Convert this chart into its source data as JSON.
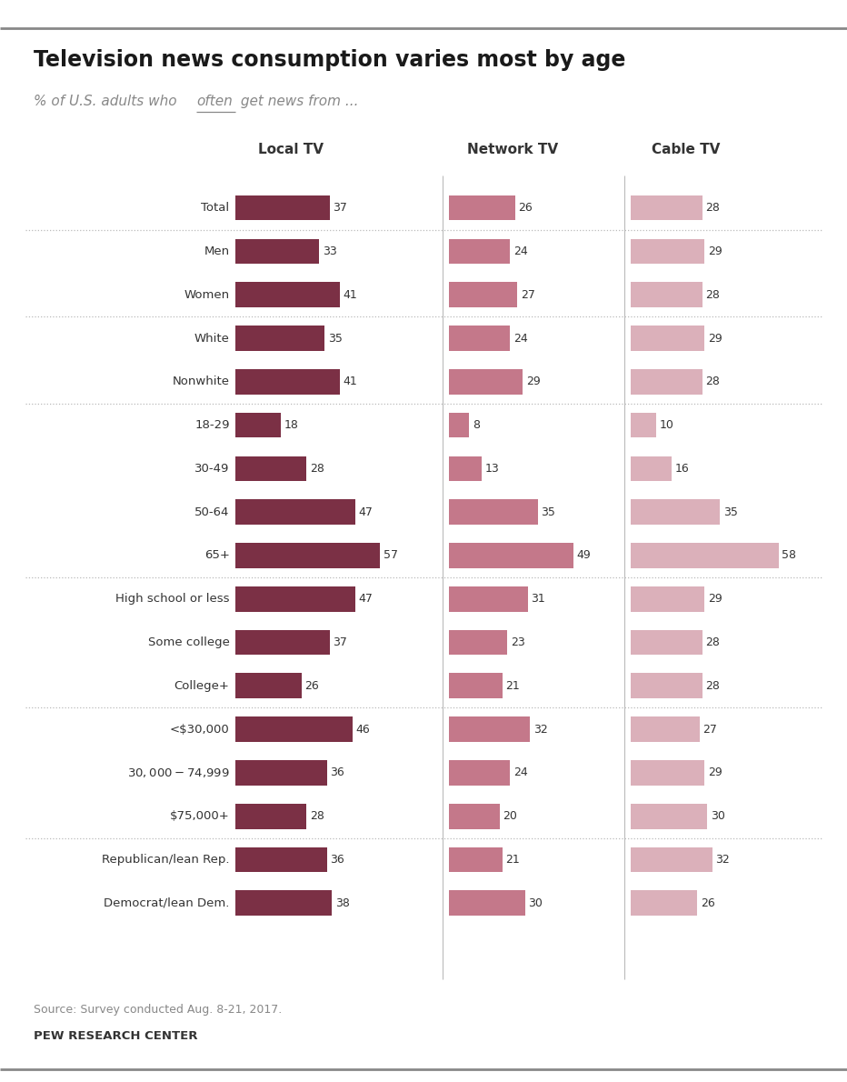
{
  "title": "Television news consumption varies most by age",
  "subtitle_pre": "% of U.S. adults who ",
  "subtitle_underlined": "often",
  "subtitle_post": " get news from ...",
  "column_headers": [
    "Local TV",
    "Network TV",
    "Cable TV"
  ],
  "categories": [
    "Total",
    "Men",
    "Women",
    "White",
    "Nonwhite",
    "18-29",
    "30-49",
    "50-64",
    "65+",
    "High school or less",
    "Some college",
    "College+",
    "<$30,000",
    "$30,000-$74,999",
    "$75,000+",
    "Republican/lean Rep.",
    "Democrat/lean Dem."
  ],
  "local_tv": [
    37,
    33,
    41,
    35,
    41,
    18,
    28,
    47,
    57,
    47,
    37,
    26,
    46,
    36,
    28,
    36,
    38
  ],
  "network_tv": [
    26,
    24,
    27,
    24,
    29,
    8,
    13,
    35,
    49,
    31,
    23,
    21,
    32,
    24,
    20,
    21,
    30
  ],
  "cable_tv": [
    28,
    29,
    28,
    29,
    28,
    10,
    16,
    35,
    58,
    29,
    28,
    28,
    27,
    29,
    30,
    32,
    26
  ],
  "group_ends": [
    1,
    3,
    5,
    9,
    12,
    15
  ],
  "color_local": "#7b3045",
  "color_network": "#c4788a",
  "color_cable": "#dbb0ba",
  "source_text": "Source: Survey conducted Aug. 8-21, 2017.",
  "footer_text": "PEW RESEARCH CENTER",
  "background_color": "#ffffff",
  "text_color": "#333333",
  "subtitle_color": "#888888",
  "separator_color": "#aaaaaa",
  "top_line_color": "#888888",
  "bottom_line_color": "#888888"
}
